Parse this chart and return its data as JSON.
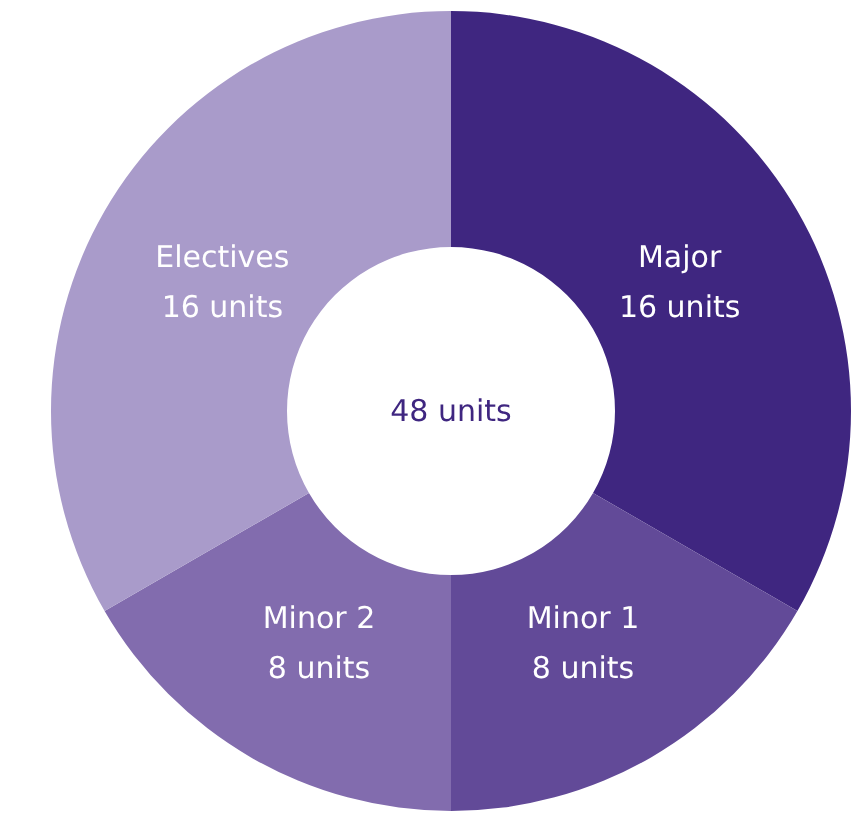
{
  "chart_data": {
    "type": "donut",
    "categories": [
      "Major",
      "Minor 1",
      "Minor 2",
      "Electives"
    ],
    "values": [
      16,
      8,
      8,
      16
    ],
    "value_labels": [
      "16 units",
      "8 units",
      "8 units",
      "16 units"
    ],
    "colors": [
      "#3f2680",
      "#624a98",
      "#826cae",
      "#a99bca"
    ],
    "annotations": [
      "48 units"
    ]
  }
}
